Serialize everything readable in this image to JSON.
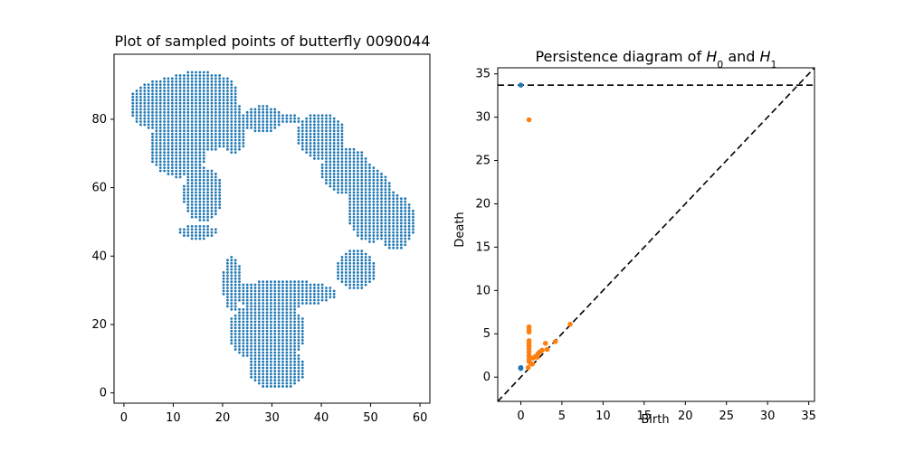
{
  "chart_data": [
    {
      "type": "scatter",
      "title": "Plot of sampled points of butterfly 0090044",
      "xlabel": "",
      "ylabel": "",
      "xlim": [
        -2,
        62
      ],
      "ylim": [
        -3,
        99
      ],
      "xticks": [
        0,
        10,
        20,
        30,
        40,
        50,
        60
      ],
      "yticks": [
        0,
        20,
        40,
        60,
        80
      ],
      "grid": false,
      "point_color": "#1f77b4",
      "point_sampling": {
        "description": "dense grid of points sampled from butterfly image",
        "step_x": 0.8,
        "step_y": 0.9
      },
      "regions": [
        {
          "name": "left-wing-upper",
          "x": [
            1,
            24
          ],
          "y": [
            80,
            93
          ]
        },
        {
          "name": "left-wing-top",
          "x": [
            10,
            24
          ],
          "y": [
            86,
            95
          ]
        },
        {
          "name": "left-wing-middle",
          "x": [
            4,
            20
          ],
          "y": [
            64,
            80
          ]
        },
        {
          "name": "left-lower-lobe",
          "x": [
            10,
            22
          ],
          "y": [
            48,
            66
          ]
        },
        {
          "name": "left-bottom-strip",
          "x": [
            13,
            21
          ],
          "y": [
            44,
            48
          ]
        },
        {
          "name": "upper-right-wing",
          "x": [
            22,
            30
          ],
          "y": [
            72,
            90
          ]
        },
        {
          "name": "center-bridge",
          "x": [
            30,
            38
          ],
          "y": [
            79,
            82
          ]
        },
        {
          "name": "right-wing-top",
          "x": [
            36,
            45
          ],
          "y": [
            60,
            82
          ]
        },
        {
          "name": "right-wing-main",
          "x": [
            42,
            54
          ],
          "y": [
            40,
            68
          ]
        },
        {
          "name": "right-wing-edge",
          "x": [
            52,
            59
          ],
          "y": [
            40,
            57
          ]
        },
        {
          "name": "right-lower",
          "x": [
            42,
            50
          ],
          "y": [
            28,
            40
          ]
        },
        {
          "name": "body-upper",
          "x": [
            20,
            44
          ],
          "y": [
            25,
            35
          ]
        },
        {
          "name": "body-main",
          "x": [
            20,
            38
          ],
          "y": [
            10,
            25
          ]
        },
        {
          "name": "body-bottom",
          "x": [
            24,
            34
          ],
          "y": [
            1,
            10
          ]
        }
      ]
    },
    {
      "type": "scatter",
      "title": "Persistence diagram of H0 and H1",
      "xlabel": "Birth",
      "ylabel": "Death",
      "xlim": [
        -2.8,
        35.7
      ],
      "ylim": [
        -2.8,
        35.7
      ],
      "xticks": [
        0,
        5,
        10,
        15,
        20,
        25,
        30,
        35
      ],
      "yticks": [
        0,
        5,
        10,
        15,
        20,
        25,
        30,
        35
      ],
      "grid": false,
      "infinity_line": 33.7,
      "diagonal": true,
      "series": [
        {
          "color": "#1f77b4",
          "points": [
            [
              0,
              33.7
            ],
            [
              0,
              1.0
            ],
            [
              0,
              1.05
            ],
            [
              0,
              1.1
            ]
          ]
        },
        {
          "color": "#ff7f0e",
          "points": [
            [
              1,
              29.7
            ],
            [
              6,
              6.1
            ],
            [
              1,
              5.8
            ],
            [
              1,
              5.5
            ],
            [
              1,
              5.2
            ],
            [
              1,
              4.2
            ],
            [
              1,
              3.9
            ],
            [
              1,
              3.6
            ],
            [
              1,
              3.3
            ],
            [
              1,
              2.9
            ],
            [
              1,
              2.5
            ],
            [
              1,
              2.1
            ],
            [
              1,
              1.8
            ],
            [
              1.2,
              1.6
            ],
            [
              1.5,
              2.2
            ],
            [
              1.8,
              2.4
            ],
            [
              2,
              2.3
            ],
            [
              2.3,
              2.9
            ],
            [
              2.6,
              3.1
            ],
            [
              3,
              3.9
            ],
            [
              3.2,
              3.2
            ],
            [
              4.2,
              4.1
            ],
            [
              2.1,
              2.7
            ],
            [
              1.4,
              1.5
            ],
            [
              0.9,
              1.1
            ]
          ]
        }
      ]
    }
  ]
}
